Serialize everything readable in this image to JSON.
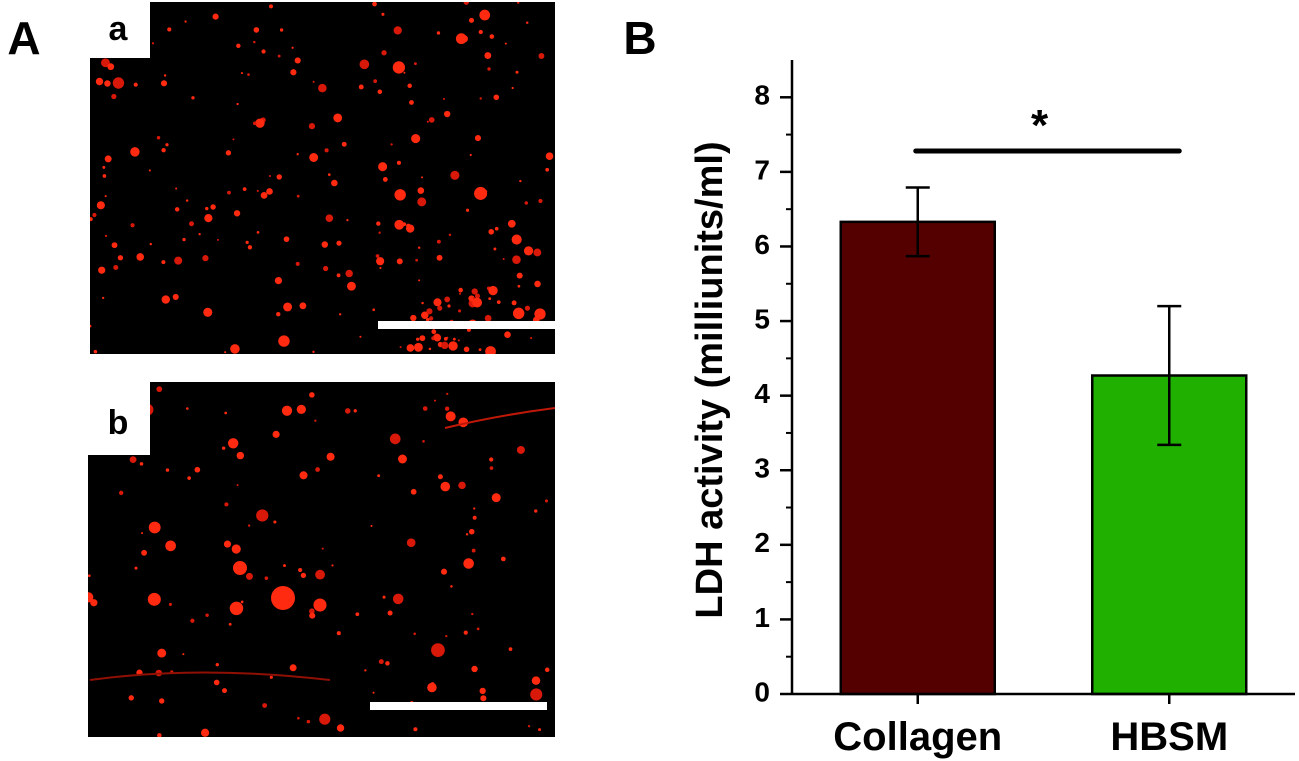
{
  "panels": {
    "left": "A",
    "right": "B"
  },
  "images": [
    {
      "label": "a"
    },
    {
      "label": "b"
    }
  ],
  "chart_data": {
    "type": "bar",
    "ylabel": "LDH activity (milliunits/ml)",
    "categories": [
      "Collagen",
      "HBSM"
    ],
    "values": [
      6.33,
      4.27
    ],
    "errors": [
      0.46,
      0.93
    ],
    "colors": [
      "#550000",
      "#1fb000"
    ],
    "ylim": [
      0,
      8.5
    ],
    "yticks": [
      0,
      1,
      2,
      3,
      4,
      5,
      6,
      7,
      8
    ],
    "annotation": "*"
  }
}
